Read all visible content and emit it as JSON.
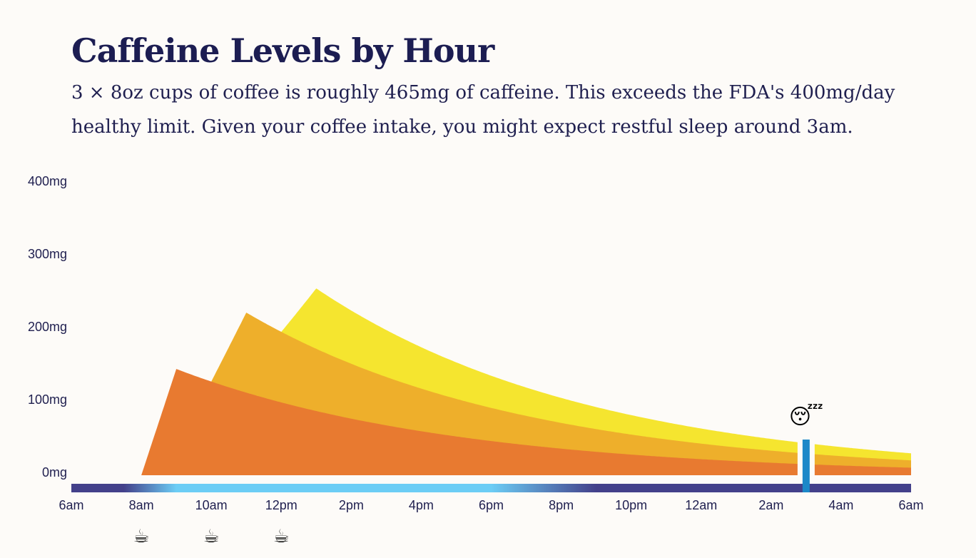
{
  "title": "Caffeine Levels by Hour",
  "subtitle": "3 × 8oz cups of coffee is roughly 465mg of caffeine. This exceeds the FDA's 400mg/day healthy limit. Given your coffee intake, you might expect restful sleep around 3am.",
  "chart_data": {
    "type": "area",
    "stacked": true,
    "x_ticks": [
      "6am",
      "8am",
      "10am",
      "12pm",
      "2pm",
      "4pm",
      "6pm",
      "8pm",
      "10pm",
      "12am",
      "2am",
      "4am",
      "6am"
    ],
    "x_range_hours": [
      0,
      24
    ],
    "y_ticks": [
      "400mg",
      "300mg",
      "200mg",
      "100mg",
      "0mg"
    ],
    "y_tick_values": [
      400,
      300,
      200,
      100,
      0
    ],
    "ylim": [
      0,
      400
    ],
    "series": [
      {
        "dose_time_hours": 2,
        "peak_time_hours": 3,
        "peak_mg": 146,
        "color": "#e87a30"
      },
      {
        "dose_time_hours": 4,
        "peak_time_hours": 5,
        "peak_mg": 110,
        "color": "#eeaf2b"
      },
      {
        "dose_time_hours": 6,
        "peak_time_hours": 7,
        "peak_mg": 83,
        "color": "#f5e52f"
      }
    ],
    "half_life_hours": 5.5,
    "end_totals_mg": {
      "cup1": 7,
      "cup2": 15,
      "cup3": 30
    },
    "coffee_cups": [
      {
        "time_hours": 2,
        "icon": "coffee-cup-icon",
        "glyph": "☕"
      },
      {
        "time_hours": 4,
        "icon": "coffee-cup-icon",
        "glyph": "☕"
      },
      {
        "time_hours": 6,
        "icon": "coffee-cup-icon",
        "glyph": "☕"
      }
    ],
    "sleep_marker": {
      "time_hours": 21,
      "icon": "sleeping-face-icon",
      "glyph": "😴",
      "color": "#1c88c8"
    },
    "daylight_bar": {
      "night_color": "#43408a",
      "day_color": "#6ccdf5",
      "sunrise_hours": 1.5,
      "day_start_hours": 3,
      "day_end_hours": 12,
      "sunset_hours": 15
    }
  }
}
